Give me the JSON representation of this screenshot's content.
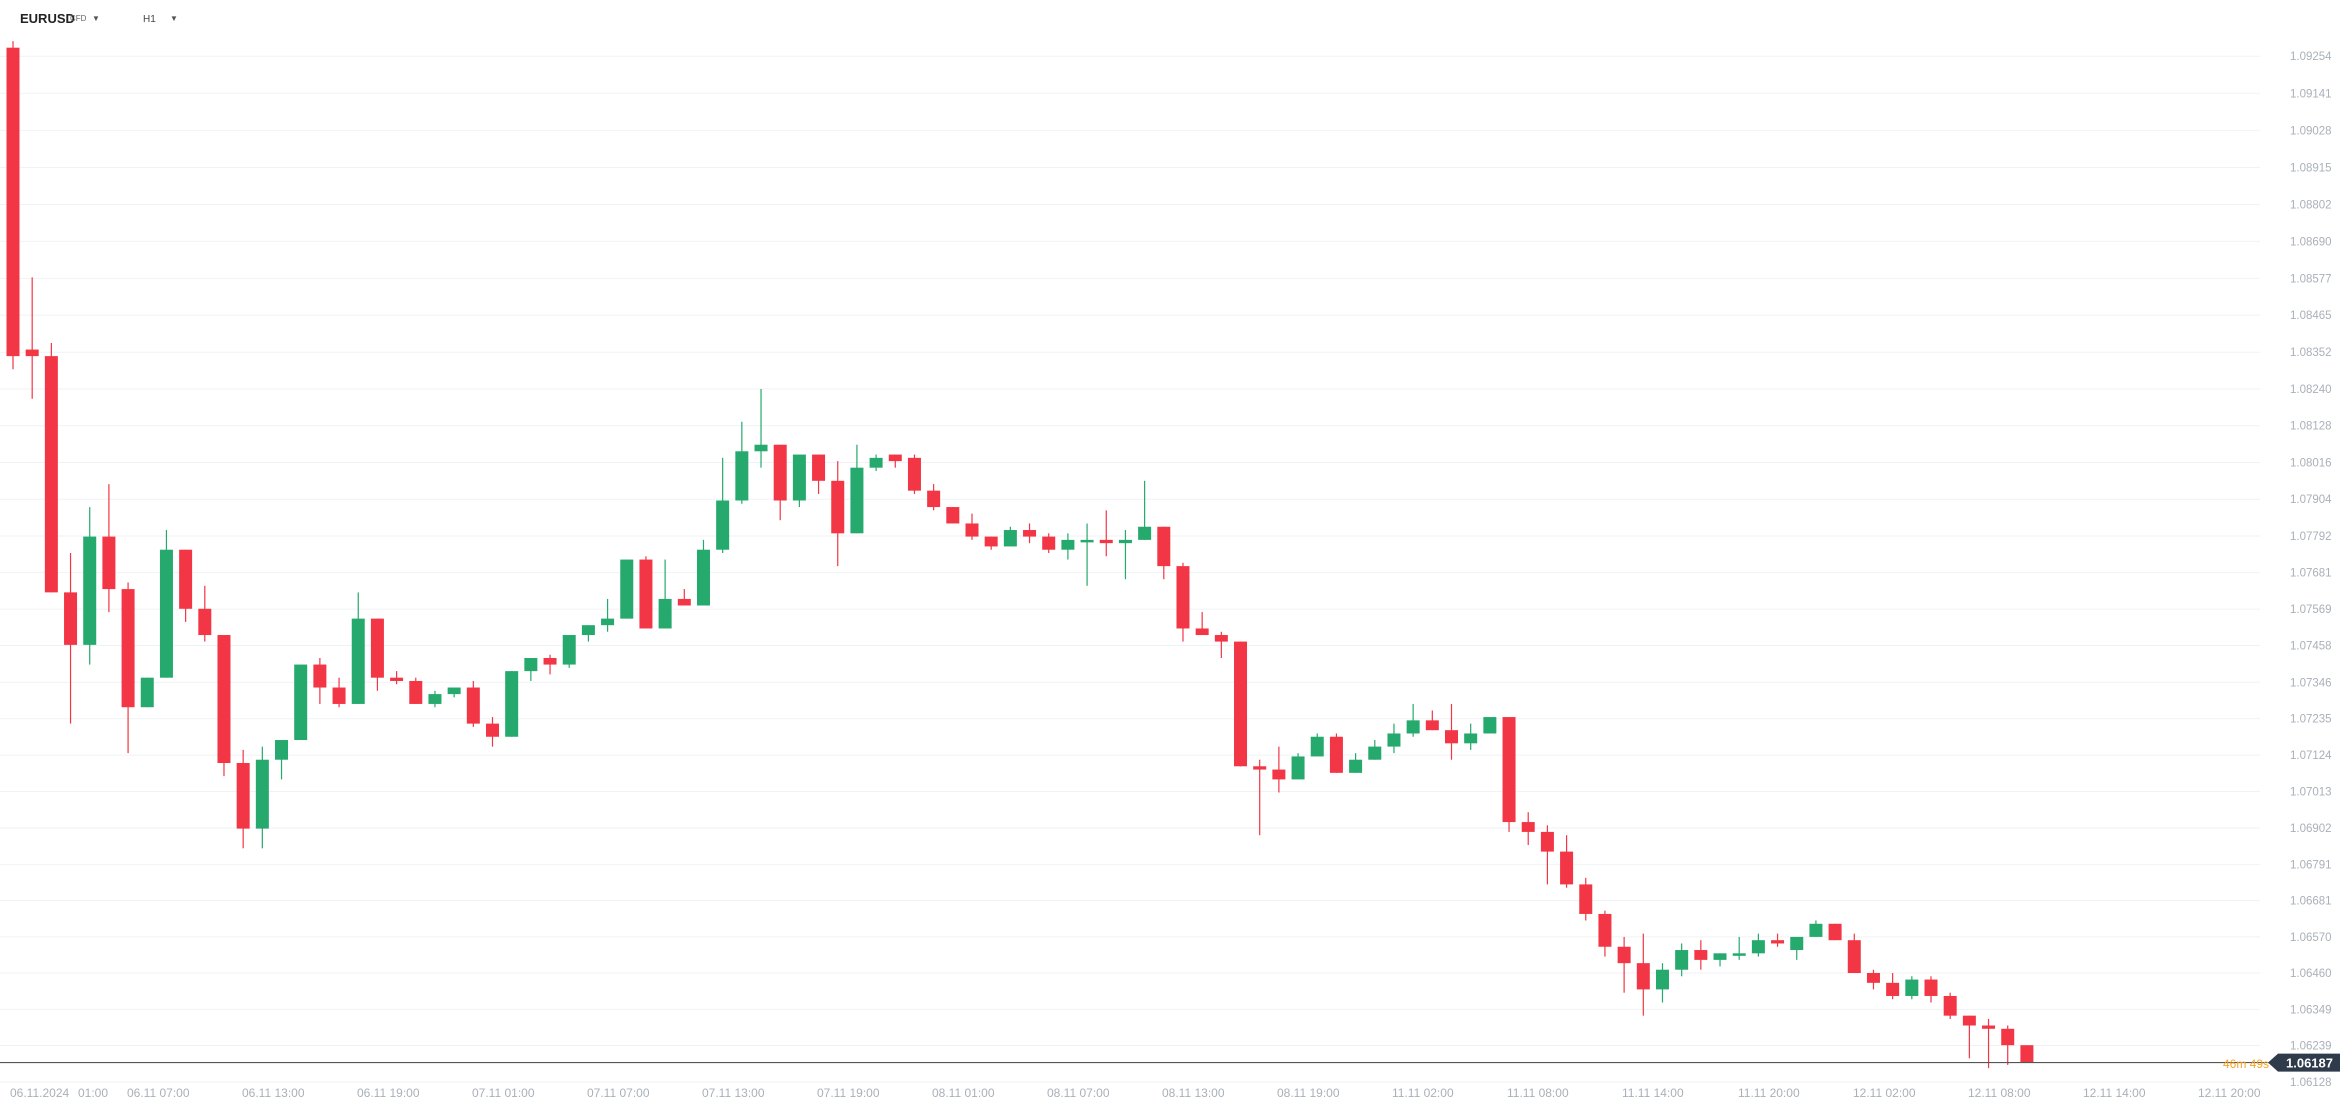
{
  "toolbar": {
    "symbol": "EURUSD",
    "symbol_type": "CFD",
    "timeframe": "H1"
  },
  "countdown": "46m 49s",
  "colors": {
    "bull": "#26a96c",
    "bear": "#f23645",
    "grid": "#f0f2f5",
    "price_line": "#555555",
    "price_tag": "#2f3b4a"
  },
  "chart_data": {
    "type": "candlestick",
    "ylim": [
      1.0614,
      1.0934
    ],
    "y_ticks": [
      "1.09254",
      "1.09141",
      "1.09028",
      "1.08915",
      "1.08802",
      "1.08690",
      "1.08577",
      "1.08465",
      "1.08352",
      "1.08240",
      "1.08128",
      "1.08016",
      "1.07904",
      "1.07792",
      "1.07681",
      "1.07569",
      "1.07458",
      "1.07346",
      "1.07235",
      "1.07124",
      "1.07013",
      "1.06902",
      "1.06791",
      "1.06681",
      "1.06570",
      "1.06460",
      "1.06349",
      "1.06239",
      "1.06128"
    ],
    "x_ticks": [
      "06.11.2024",
      "01:00",
      "06.11 07:00",
      "06.11 13:00",
      "06.11 19:00",
      "07.11 01:00",
      "07.11 07:00",
      "07.11 13:00",
      "07.11 19:00",
      "08.11 01:00",
      "08.11 07:00",
      "08.11 13:00",
      "08.11 19:00",
      "11.11 02:00",
      "11.11 08:00",
      "11.11 14:00",
      "11.11 20:00",
      "12.11 02:00",
      "12.11 08:00",
      "12.11 14:00",
      "12.11 20:00"
    ],
    "last_price": "1.06187",
    "candles": [
      [
        1.0928,
        1.093,
        1.0834,
        1.083
      ],
      [
        1.0836,
        1.0858,
        1.0834,
        1.0821
      ],
      [
        1.0834,
        1.0838,
        1.0762,
        1.0762
      ],
      [
        1.0762,
        1.0774,
        1.0746,
        1.0722
      ],
      [
        1.0746,
        1.0788,
        1.0779,
        1.074
      ],
      [
        1.0779,
        1.0795,
        1.0763,
        1.0756
      ],
      [
        1.0763,
        1.0765,
        1.0727,
        1.0713
      ],
      [
        1.0727,
        1.0734,
        1.0736,
        1.0727
      ],
      [
        1.0736,
        1.0781,
        1.0775,
        1.0736
      ],
      [
        1.0775,
        1.0775,
        1.0757,
        1.0753
      ],
      [
        1.0757,
        1.0764,
        1.0749,
        1.0747
      ],
      [
        1.0749,
        1.0749,
        1.071,
        1.0706
      ],
      [
        1.071,
        1.0714,
        1.069,
        1.0684
      ],
      [
        1.069,
        1.0715,
        1.0711,
        1.0684
      ],
      [
        1.0711,
        1.0715,
        1.0717,
        1.0705
      ],
      [
        1.0717,
        1.0739,
        1.074,
        1.0717
      ],
      [
        1.074,
        1.0742,
        1.0733,
        1.0728
      ],
      [
        1.0733,
        1.0736,
        1.0728,
        1.0727
      ],
      [
        1.0728,
        1.0762,
        1.0754,
        1.0728
      ],
      [
        1.0754,
        1.0754,
        1.0736,
        1.0732
      ],
      [
        1.0736,
        1.0738,
        1.0735,
        1.0734
      ],
      [
        1.0735,
        1.0736,
        1.0728,
        1.0728
      ],
      [
        1.0728,
        1.0732,
        1.0731,
        1.0727
      ],
      [
        1.0731,
        1.0733,
        1.0733,
        1.073
      ],
      [
        1.0733,
        1.0735,
        1.0722,
        1.0721
      ],
      [
        1.0722,
        1.0724,
        1.0718,
        1.0715
      ],
      [
        1.0718,
        1.0738,
        1.0738,
        1.0718
      ],
      [
        1.0738,
        1.0741,
        1.0742,
        1.0735
      ],
      [
        1.0742,
        1.0743,
        1.074,
        1.0737
      ],
      [
        1.074,
        1.0746,
        1.0749,
        1.0739
      ],
      [
        1.0749,
        1.0752,
        1.0752,
        1.0747
      ],
      [
        1.0752,
        1.076,
        1.0754,
        1.075
      ],
      [
        1.0754,
        1.077,
        1.0772,
        1.0754
      ],
      [
        1.0772,
        1.0773,
        1.0751,
        1.0751
      ],
      [
        1.0751,
        1.0772,
        1.076,
        1.0751
      ],
      [
        1.076,
        1.0763,
        1.0758,
        1.0758
      ],
      [
        1.0758,
        1.0778,
        1.0775,
        1.0758
      ],
      [
        1.0775,
        1.0803,
        1.079,
        1.0774
      ],
      [
        1.079,
        1.0814,
        1.0805,
        1.0789
      ],
      [
        1.0805,
        1.0824,
        1.0807,
        1.08
      ],
      [
        1.0807,
        1.0807,
        1.079,
        1.0784
      ],
      [
        1.079,
        1.0801,
        1.0804,
        1.0788
      ],
      [
        1.0804,
        1.0804,
        1.0796,
        1.0792
      ],
      [
        1.0796,
        1.0802,
        1.078,
        1.077
      ],
      [
        1.078,
        1.0807,
        1.08,
        1.078
      ],
      [
        1.08,
        1.0804,
        1.0803,
        1.0799
      ],
      [
        1.0804,
        1.0804,
        1.0802,
        1.08
      ],
      [
        1.0803,
        1.0804,
        1.0793,
        1.0792
      ],
      [
        1.0793,
        1.0795,
        1.0788,
        1.0787
      ],
      [
        1.0788,
        1.0788,
        1.0783,
        1.0783
      ],
      [
        1.0783,
        1.0786,
        1.0779,
        1.0778
      ],
      [
        1.0779,
        1.0779,
        1.0776,
        1.0775
      ],
      [
        1.0776,
        1.0782,
        1.0781,
        1.0776
      ],
      [
        1.0781,
        1.0783,
        1.0779,
        1.0777
      ],
      [
        1.0779,
        1.078,
        1.0775,
        1.0774
      ],
      [
        1.0775,
        1.078,
        1.0778,
        1.0772
      ],
      [
        1.0778,
        1.0783,
        1.0778,
        1.0764
      ],
      [
        1.0778,
        1.0787,
        1.0777,
        1.0773
      ],
      [
        1.0777,
        1.0781,
        1.0778,
        1.0766
      ],
      [
        1.0778,
        1.0796,
        1.0782,
        1.0778
      ],
      [
        1.0782,
        1.0782,
        1.077,
        1.0766
      ],
      [
        1.077,
        1.0771,
        1.0751,
        1.0747
      ],
      [
        1.0751,
        1.0756,
        1.0749,
        1.0749
      ],
      [
        1.0749,
        1.075,
        1.0747,
        1.0742
      ],
      [
        1.0747,
        1.0747,
        1.0709,
        1.0709
      ],
      [
        1.0709,
        1.0711,
        1.0708,
        1.0688
      ],
      [
        1.0708,
        1.0715,
        1.0705,
        1.0701
      ],
      [
        1.0705,
        1.0713,
        1.0712,
        1.0705
      ],
      [
        1.0712,
        1.0719,
        1.0718,
        1.0712
      ],
      [
        1.0718,
        1.0719,
        1.0707,
        1.0707
      ],
      [
        1.0707,
        1.0713,
        1.0711,
        1.0707
      ],
      [
        1.0711,
        1.0717,
        1.0715,
        1.0711
      ],
      [
        1.0715,
        1.0722,
        1.0719,
        1.0713
      ],
      [
        1.0719,
        1.0728,
        1.0723,
        1.0718
      ],
      [
        1.0723,
        1.0726,
        1.072,
        1.072
      ],
      [
        1.072,
        1.0728,
        1.0716,
        1.0711
      ],
      [
        1.0716,
        1.0722,
        1.0719,
        1.0714
      ],
      [
        1.0719,
        1.0723,
        1.0724,
        1.0719
      ],
      [
        1.0724,
        1.0724,
        1.0692,
        1.0689
      ],
      [
        1.0692,
        1.0695,
        1.0689,
        1.0685
      ],
      [
        1.0689,
        1.0691,
        1.0683,
        1.0673
      ],
      [
        1.0683,
        1.0688,
        1.0673,
        1.0672
      ],
      [
        1.0673,
        1.0675,
        1.0664,
        1.0662
      ],
      [
        1.0664,
        1.0665,
        1.0654,
        1.0651
      ],
      [
        1.0654,
        1.0657,
        1.0649,
        1.064
      ],
      [
        1.0649,
        1.0658,
        1.0641,
        1.0633
      ],
      [
        1.0641,
        1.0649,
        1.0647,
        1.0637
      ],
      [
        1.0647,
        1.0655,
        1.0653,
        1.0645
      ],
      [
        1.0653,
        1.0656,
        1.065,
        1.0647
      ],
      [
        1.065,
        1.0652,
        1.0652,
        1.0648
      ],
      [
        1.0652,
        1.0657,
        1.0652,
        1.065
      ],
      [
        1.0652,
        1.0658,
        1.0656,
        1.0651
      ],
      [
        1.0656,
        1.0658,
        1.0655,
        1.0654
      ],
      [
        1.0653,
        1.0657,
        1.0657,
        1.065
      ],
      [
        1.0657,
        1.0662,
        1.0661,
        1.0657
      ],
      [
        1.0661,
        1.0661,
        1.0656,
        1.0656
      ],
      [
        1.0656,
        1.0658,
        1.0646,
        1.0646
      ],
      [
        1.0646,
        1.0647,
        1.0643,
        1.0641
      ],
      [
        1.0643,
        1.0646,
        1.0639,
        1.0638
      ],
      [
        1.0639,
        1.0645,
        1.0644,
        1.0638
      ],
      [
        1.0644,
        1.0645,
        1.0639,
        1.0637
      ],
      [
        1.0639,
        1.064,
        1.0633,
        1.0632
      ],
      [
        1.0633,
        1.0633,
        1.063,
        1.062
      ],
      [
        1.063,
        1.0632,
        1.0629,
        1.0617
      ],
      [
        1.0629,
        1.063,
        1.0624,
        1.0618
      ],
      [
        1.0624,
        1.0624,
        1.06187,
        1.06187
      ]
    ]
  }
}
